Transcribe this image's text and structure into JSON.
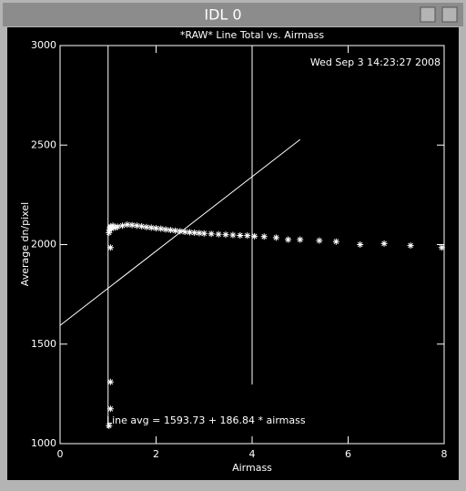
{
  "window": {
    "title": "IDL 0"
  },
  "chart_data": {
    "type": "scatter",
    "title": "*RAW* Line Total vs. Airmass",
    "timestamp": "Wed Sep  3 14:23:27 2008",
    "x_label": "Airmass",
    "y_label": "Average dn/pixel",
    "xlim": [
      0,
      8
    ],
    "ylim": [
      1000,
      3000
    ],
    "xticks": [
      0,
      2,
      4,
      6,
      8
    ],
    "yticks": [
      1000,
      1500,
      2000,
      2500,
      3000
    ],
    "color": "#ffffff",
    "x": [
      1.05,
      1.05,
      1.05,
      1.02,
      1.02,
      1.03,
      1.04,
      1.05,
      1.07,
      1.1,
      1.15,
      1.2,
      1.3,
      1.4,
      1.5,
      1.6,
      1.7,
      1.8,
      1.9,
      2.0,
      2.1,
      2.2,
      2.3,
      2.4,
      2.5,
      2.6,
      2.7,
      2.8,
      2.9,
      3.0,
      3.15,
      3.3,
      3.45,
      3.6,
      3.75,
      3.9,
      4.05,
      4.25,
      4.5,
      4.75,
      5.0,
      5.4,
      5.75,
      6.25,
      6.75,
      7.3,
      7.95
    ],
    "values": [
      1985,
      1310,
      1175,
      1090,
      2060,
      2075,
      2085,
      2090,
      2080,
      2095,
      2085,
      2090,
      2095,
      2100,
      2098,
      2095,
      2092,
      2088,
      2085,
      2082,
      2080,
      2076,
      2073,
      2070,
      2067,
      2064,
      2062,
      2060,
      2058,
      2056,
      2054,
      2052,
      2050,
      2048,
      2046,
      2045,
      2042,
      2040,
      2035,
      2025,
      2025,
      2020,
      2015,
      2000,
      2005,
      1995,
      1985
    ],
    "vlines": [
      {
        "x": 1,
        "y": [
          1078,
          3000
        ]
      },
      {
        "x": 4,
        "y": [
          1297,
          3000
        ]
      }
    ],
    "fit": {
      "intercept": 1593.73,
      "slope": 186.84,
      "x": [
        0,
        5
      ],
      "label": "Line avg = 1593.73 + 186.84 * airmass"
    }
  }
}
